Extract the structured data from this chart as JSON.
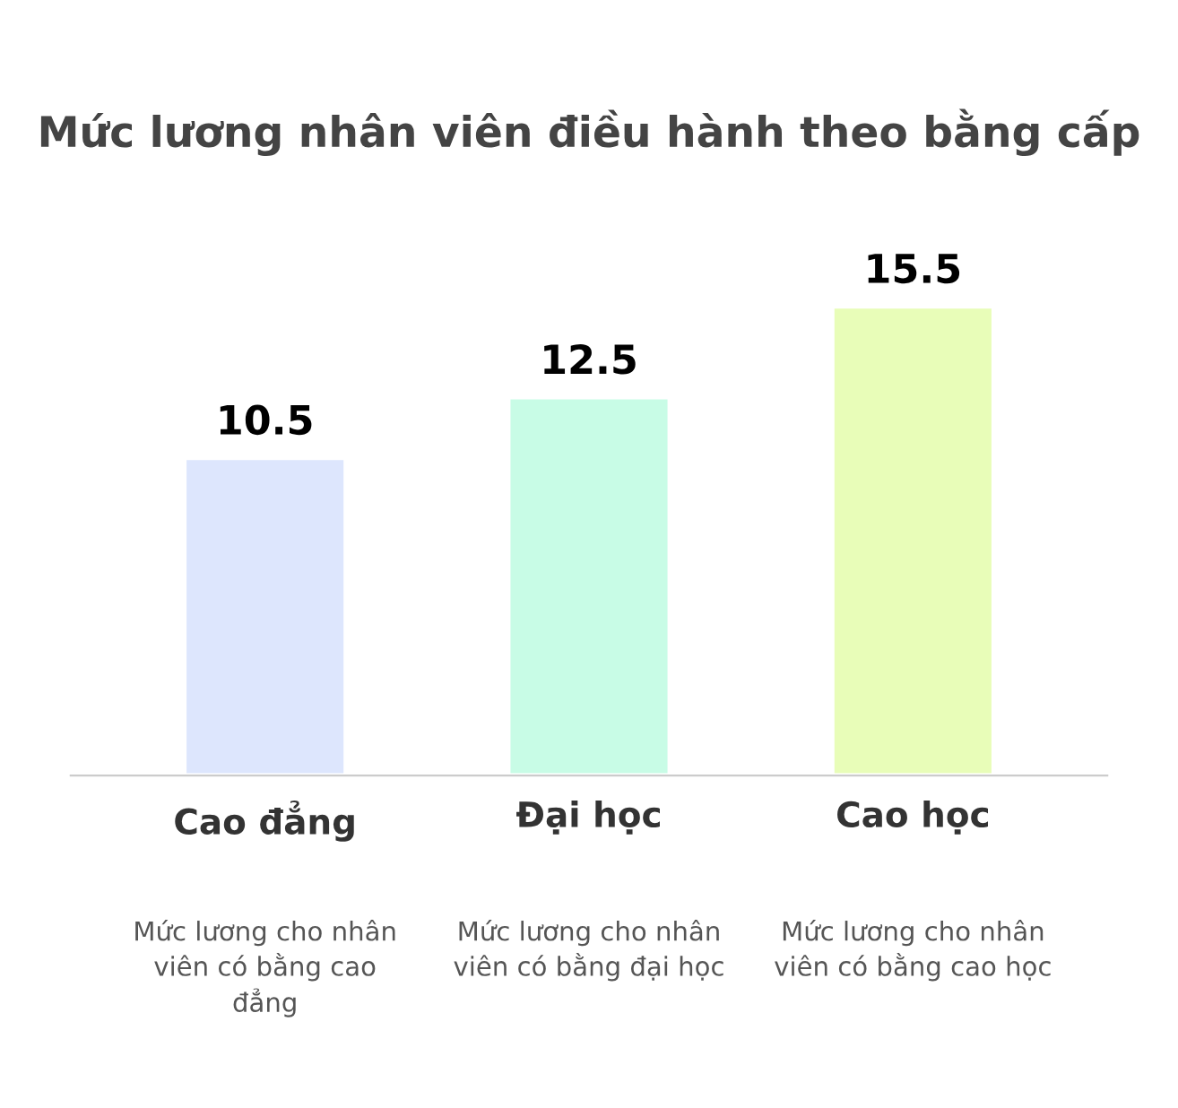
{
  "chart_data": {
    "type": "bar",
    "title": "Mức lương nhân viên điều hành theo bằng cấp",
    "categories": [
      "Cao đẳng",
      "Đại học",
      "Cao học"
    ],
    "values": [
      10.5,
      12.5,
      15.5
    ],
    "colors": [
      "#dde6fd",
      "#c8fce6",
      "#e8fdb8"
    ],
    "data_labels": true,
    "annotations": [
      "Mức lương cho nhân\nviên có bằng cao\nđẳng",
      "Mức lương cho nhân\nviên có bằng đại học",
      "Mức lương cho nhân\nviên có bằng cao học"
    ]
  }
}
